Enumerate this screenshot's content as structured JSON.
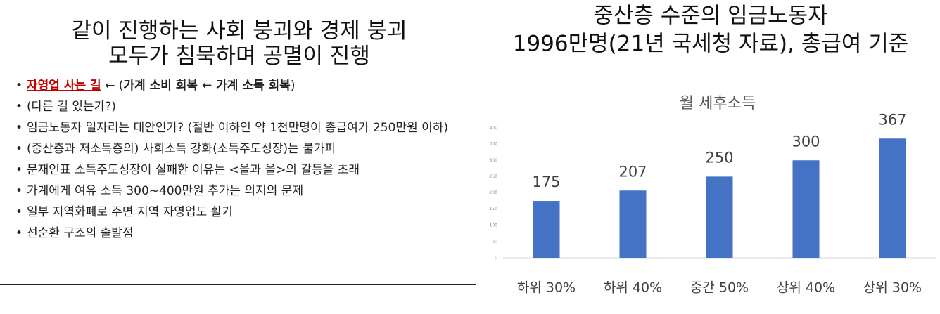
{
  "left": {
    "title": [
      "같이 진행하는 사회 붕괴와 경제 붕괴",
      "모두가 침묵하며 공멸이 진행"
    ],
    "bullets": [
      {
        "parts": [
          {
            "text": "자영업 사는 길",
            "color": "#c00000",
            "underline": true,
            "bold": true
          },
          {
            "text": " ← ("
          },
          {
            "text": "가계 소비 회복 ← 가계 소득 회복",
            "bold": true
          },
          {
            "text": ")"
          }
        ]
      },
      "(다른 길 있는가?)",
      "임금노동자 일자리는 대안인가? (절반 이하인 약 1천만명이 총급여가 250만원 이하)",
      "(중산층과 저소득층의) 사회소득 강화(소득주도성장)는 불가피",
      "문재인표 소득주도성장이 실패한 이유는 <을과 을>의 갈등을 초래",
      "가계에게 여유 소득 300~400만원 추가는 의지의 문제",
      "일부 지역화폐로 주면 지역 자영업도 활기",
      "선순환 구조의 출발점"
    ]
  },
  "chart_data": {
    "type": "bar",
    "title": [
      "중산층 수준의 임금노동자",
      "1996만명(21년 국세청 자료), 총급여 기준"
    ],
    "subtitle": "월 세후소득",
    "categories": [
      "하위 30%",
      "하위 40%",
      "중간 50%",
      "상위 40%",
      "상위 30%"
    ],
    "values": [
      175,
      207,
      250,
      300,
      367
    ],
    "color": "#4472c4",
    "ylim": [
      0,
      400
    ],
    "yticks": [
      0,
      50,
      100,
      150,
      200,
      250,
      300,
      350,
      400
    ],
    "grid": false
  }
}
